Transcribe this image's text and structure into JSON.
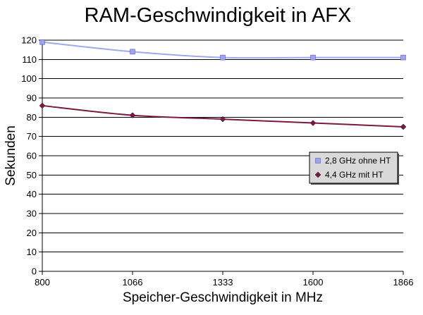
{
  "chart_data": {
    "type": "line",
    "title": "RAM-Geschwindigkeit in AFX",
    "xlabel": "Speicher-Geschwindigkeit in MHz",
    "ylabel": "Sekunden",
    "categories": [
      "800",
      "1066",
      "1333",
      "1600",
      "1866"
    ],
    "ylim": [
      0,
      120
    ],
    "ytick_step": 10,
    "grid": "horizontal",
    "legend_position": "right",
    "series": [
      {
        "name": "2,8 GHz ohne HT",
        "values": [
          119,
          114,
          111,
          111,
          111
        ],
        "line_color": "#9fa8f2",
        "marker": "square",
        "marker_color": "#9fa3f0"
      },
      {
        "name": "4,4 GHz mit HT",
        "values": [
          86,
          81,
          79,
          77,
          75
        ],
        "line_color": "#7a1a44",
        "marker": "diamond",
        "marker_color": "#7a1a44"
      }
    ]
  }
}
